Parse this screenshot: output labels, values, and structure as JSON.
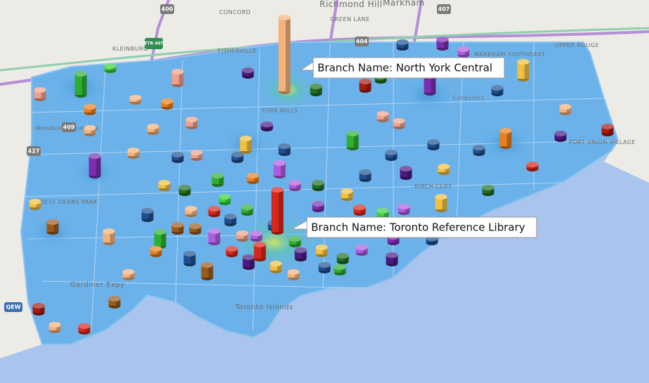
{
  "tooltips": [
    {
      "text": "Branch Name: North York Central"
    },
    {
      "text": "Branch Name: Toronto Reference Library"
    }
  ],
  "map_labels": [
    "Richmond Hill",
    "Markham",
    "CONCORD",
    "GREEN LANE",
    "KLEINBURG",
    "FISHERVILLE",
    "MARKHAM SOUTHEAST",
    "UPPER ROUGE",
    "Woodbine Racetrack",
    "WEST DEANS PARK",
    "PORT UNION VILLAGE",
    "BIRCH CLIFF",
    "YORK MILLS",
    "Collectors",
    "Gardiner Expy",
    "Toronto Islands"
  ],
  "highway_labels": [
    "400",
    "407",
    "404",
    "427",
    "409",
    "QEW",
    "ETR 407"
  ]
}
